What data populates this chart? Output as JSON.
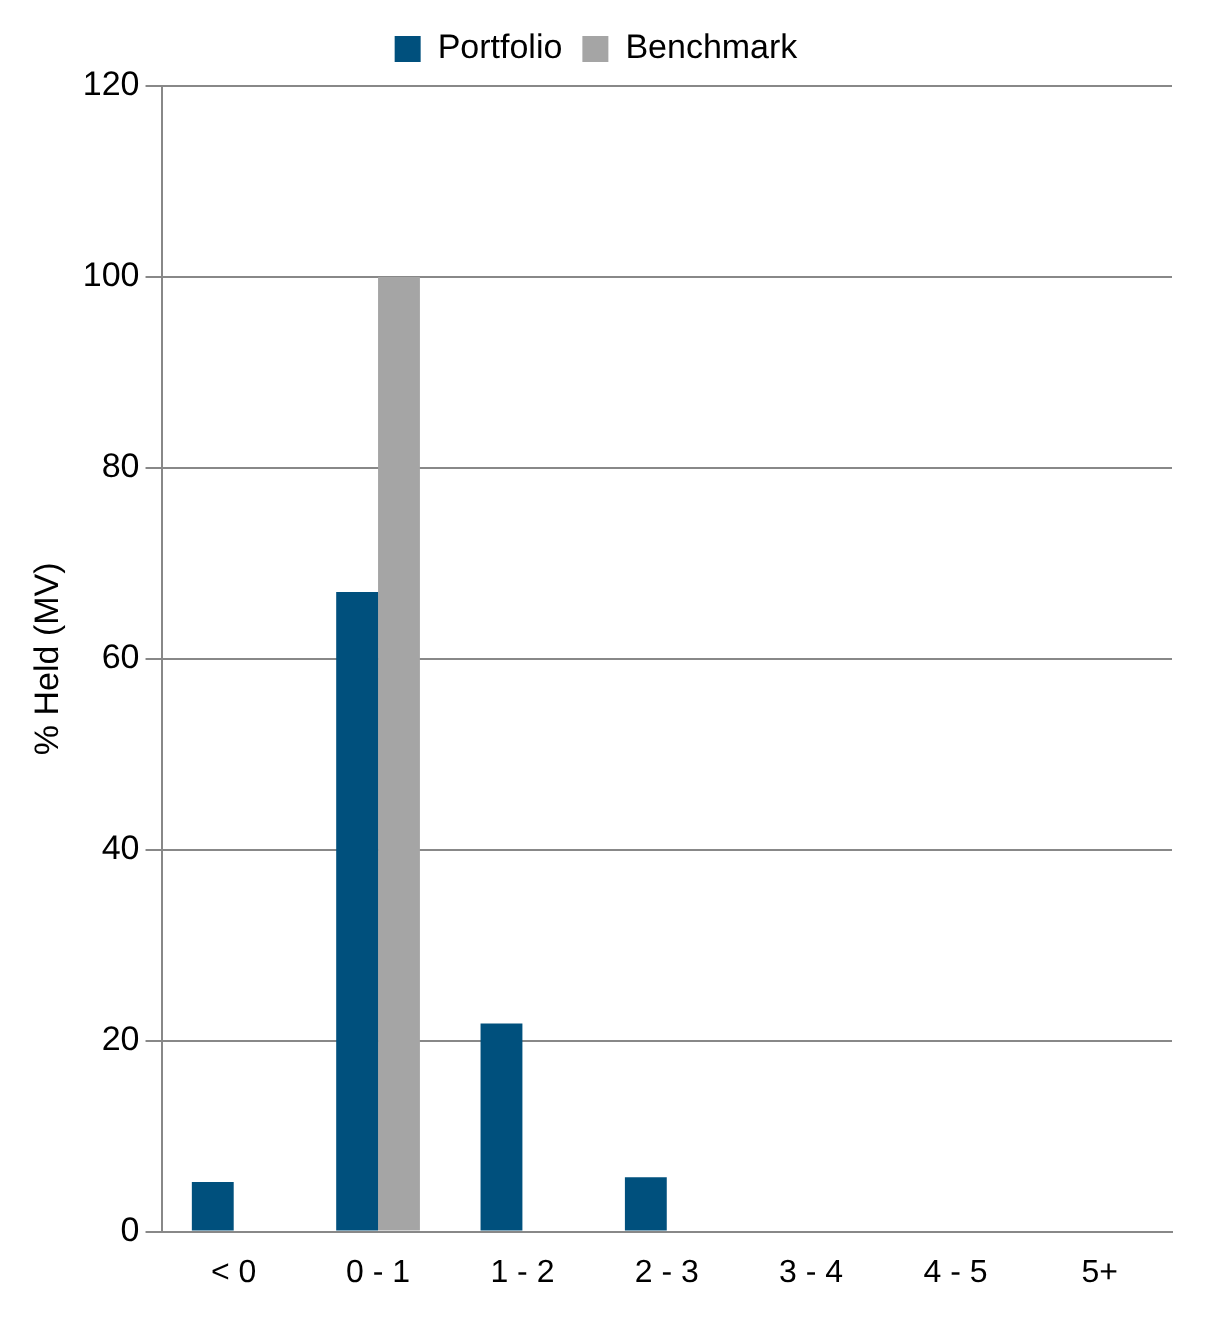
{
  "chart_data": {
    "type": "bar",
    "ylabel": "% Held (MV)",
    "categories": [
      "< 0",
      "0 - 1",
      "1 - 2",
      "2 - 3",
      "3 - 4",
      "4 - 5",
      "5+"
    ],
    "series": [
      {
        "name": "Portfolio",
        "color": "#00507d",
        "values": [
          5.2,
          67,
          21.8,
          5.7,
          0,
          0,
          0
        ]
      },
      {
        "name": "Benchmark",
        "color": "#a5a5a5",
        "values": [
          0,
          100,
          0,
          0,
          0,
          0,
          0
        ]
      }
    ],
    "ylim": [
      0,
      120
    ],
    "yticks": [
      0,
      20,
      40,
      60,
      80,
      100,
      120
    ],
    "grid": "y",
    "legend": "top"
  }
}
